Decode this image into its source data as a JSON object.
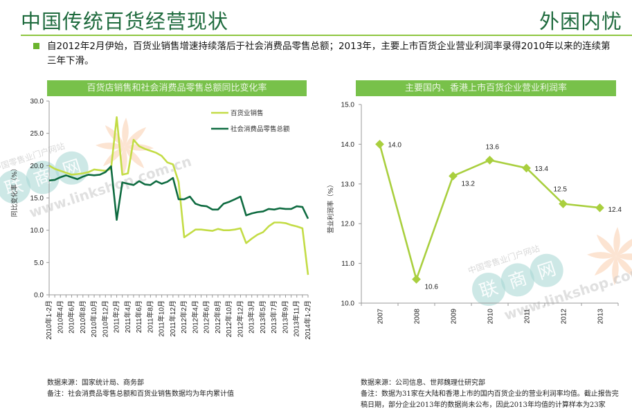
{
  "header": {
    "title": "中国传统百货经营现状",
    "tagline": "外困内忧",
    "summary": "自2012年2月伊始，百货业销售增速持续落后于社会消费品零售总额；2013年，主要上市百货企业营业利润率录得2010年以来的连续第三年下滑。"
  },
  "colors": {
    "brand_green": "#1f6b3e",
    "banner_green": "#78c14a",
    "dept_store_line": "#c3dc45",
    "retail_line": "#0e6b40",
    "margin_line": "#a9cf3e"
  },
  "chart_data": [
    {
      "type": "line",
      "title": "百货店销售和社会消费品零售总额同比变化率",
      "xlabel": "",
      "ylabel": "同比变化率（%）",
      "ylim": [
        0,
        30
      ],
      "yticks": [
        "0.0",
        "5.0",
        "10.0",
        "15.0",
        "20.0",
        "25.0",
        "30.0"
      ],
      "legend_position": "top-right",
      "x_tick_labels": [
        "2010年1-2月",
        "2010年4月",
        "2010年6月",
        "2010年8月",
        "2010年10月",
        "2010年12月",
        "2011年2月",
        "2011年4月",
        "2011年6月",
        "2011年8月",
        "2011年10月",
        "2011年12月",
        "2012年2月",
        "2012年4月",
        "2012年6月",
        "2012年8月",
        "2012年10月",
        "2012年12月",
        "2013年3月",
        "2013年5月",
        "2013年7月",
        "2013年9月",
        "2013年11月",
        "2014年1-2月"
      ],
      "series": [
        {
          "name": "百货业销售",
          "values": [
            20.0,
            19.5,
            19.2,
            18.9,
            18.6,
            18.7,
            18.8,
            19.0,
            19.4,
            19.3,
            19.2,
            19.5,
            27.5,
            18.6,
            18.8,
            24.0,
            23.0,
            22.6,
            22.3,
            22.0,
            21.5,
            20.5,
            20.2,
            17.5,
            8.9,
            9.5,
            10.1,
            10.1,
            10.0,
            9.9,
            10.2,
            10.0,
            10.0,
            10.1,
            10.3,
            8.0,
            8.7,
            9.3,
            9.7,
            10.6,
            11.2,
            11.2,
            11.1,
            10.8,
            10.6,
            10.3,
            3.1
          ]
        },
        {
          "name": "社会消费品零售总额",
          "values": [
            17.7,
            17.8,
            18.2,
            18.5,
            18.2,
            17.9,
            18.3,
            18.6,
            18.5,
            18.6,
            19.0,
            19.9,
            11.6,
            17.4,
            17.2,
            17.0,
            17.6,
            17.1,
            17.0,
            17.6,
            17.2,
            17.5,
            18.1,
            14.8,
            14.8,
            15.2,
            14.1,
            13.8,
            13.7,
            13.2,
            13.2,
            14.1,
            14.4,
            14.8,
            15.2,
            12.3,
            12.6,
            12.8,
            12.9,
            13.3,
            13.2,
            13.4,
            13.3,
            13.3,
            13.7,
            13.6,
            11.8
          ]
        }
      ],
      "source": "数据来源：国家统计局、商务部",
      "note": "备注：社会消费品零售总额和百货业销售数据均为年内累计值"
    },
    {
      "type": "line",
      "title": "主要国内、香港上市百货企业营业利润率",
      "xlabel": "",
      "ylabel": "营业利润率（%）",
      "ylim": [
        10,
        15
      ],
      "yticks": [
        "10.0",
        "11.0",
        "12.0",
        "13.0",
        "14.0",
        "15.0"
      ],
      "categories": [
        "2007",
        "2008",
        "2009",
        "2010",
        "2011",
        "2012",
        "2013"
      ],
      "values": [
        14.0,
        10.6,
        13.2,
        13.6,
        13.4,
        12.5,
        12.4
      ],
      "data_labels": [
        "14.0",
        "10.6",
        "13.2",
        "13.6",
        "13.4",
        "12.5",
        "12.4"
      ],
      "source": "数据来源：公司信息、世邦魏理仕研究部",
      "note": "备注：数据为31家在大陆和香港上市的国内百货企业的营业利润率均值。截止报告完稿日期，部分企业2013年的数据尚未公布，因此2013年均值的计算样本为23家"
    }
  ],
  "watermark": {
    "text_top": "中国零售业门户网站",
    "logo": "联商网",
    "url": "www.linkshop.com.cn"
  }
}
